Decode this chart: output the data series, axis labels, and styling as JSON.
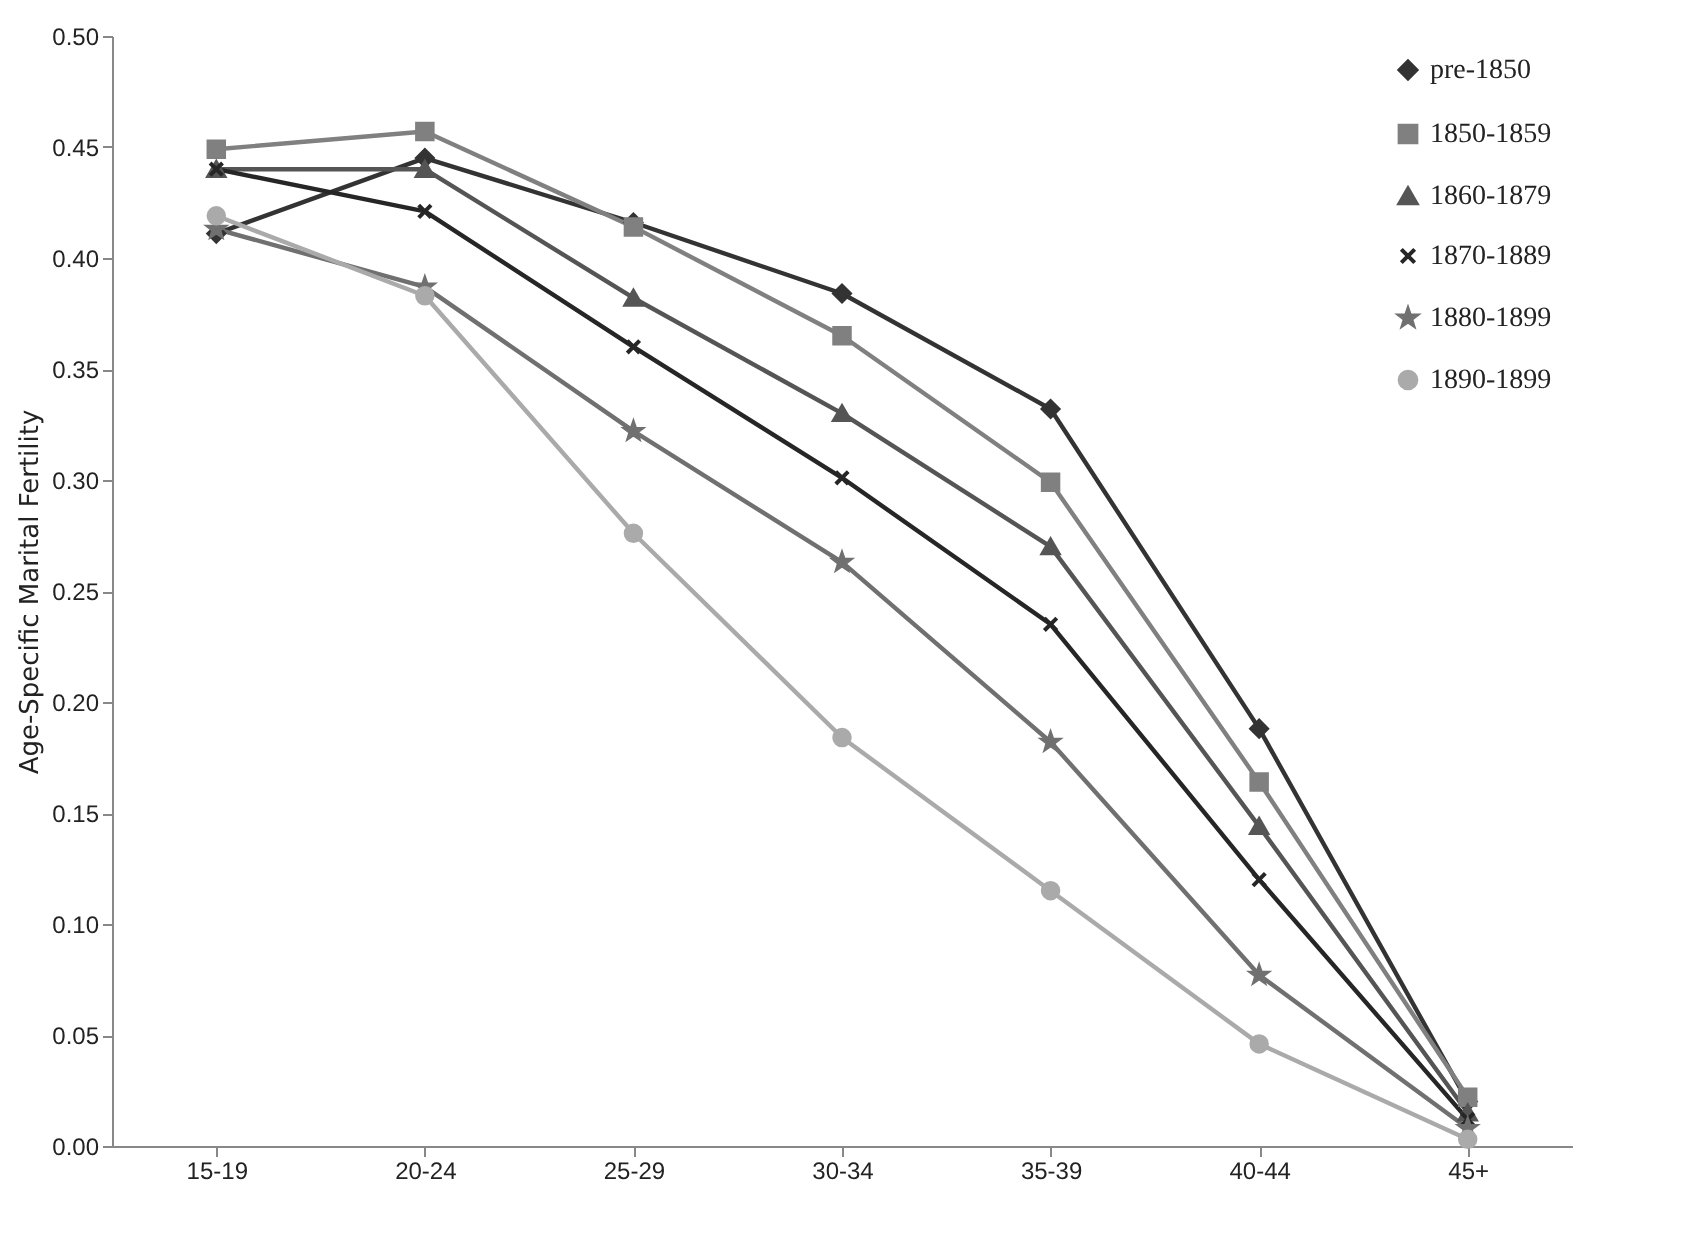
{
  "chart_data": {
    "type": "line",
    "ylabel": "Age-Specific Marital Fertility",
    "categories": [
      "15-19",
      "20-24",
      "25-29",
      "30-34",
      "35-39",
      "40-44",
      "45+"
    ],
    "series": [
      {
        "name": "pre-1850",
        "color": "#333333",
        "marker": "diamond",
        "values": [
          0.411,
          0.445,
          0.416,
          0.384,
          0.332,
          0.188,
          0.02
        ]
      },
      {
        "name": "1850-1859",
        "color": "#808080",
        "marker": "square",
        "values": [
          0.449,
          0.457,
          0.414,
          0.365,
          0.299,
          0.164,
          0.022
        ]
      },
      {
        "name": "1860-1879",
        "color": "#555555",
        "marker": "triangle",
        "values": [
          0.44,
          0.44,
          0.382,
          0.33,
          0.27,
          0.144,
          0.015
        ]
      },
      {
        "name": "1870-1889",
        "color": "#262626",
        "marker": "cross",
        "values": [
          0.44,
          0.421,
          0.36,
          0.301,
          0.235,
          0.12,
          0.012
        ]
      },
      {
        "name": "1880-1899",
        "color": "#707070",
        "marker": "star",
        "values": [
          0.413,
          0.387,
          0.322,
          0.263,
          0.182,
          0.077,
          0.008
        ]
      },
      {
        "name": "1890-1899",
        "color": "#aaaaaa",
        "marker": "circle",
        "values": [
          0.419,
          0.383,
          0.276,
          0.184,
          0.115,
          0.046,
          0.003
        ]
      }
    ],
    "ylim": [
      0,
      0.5
    ],
    "yticks": [
      {
        "value": 0,
        "label": "0.00"
      },
      0.05,
      {
        "value": 0.1,
        "label": "0.10"
      },
      0.15,
      {
        "value": 0.2,
        "label": "0.20"
      },
      0.25,
      {
        "value": 0.3,
        "label": "0.30"
      },
      0.35,
      {
        "value": 0.4,
        "label": "0.40"
      },
      0.45,
      {
        "value": 0.5,
        "label": "0.50"
      }
    ],
    "grid": false,
    "legend": "top right",
    "line_style": "solid"
  }
}
